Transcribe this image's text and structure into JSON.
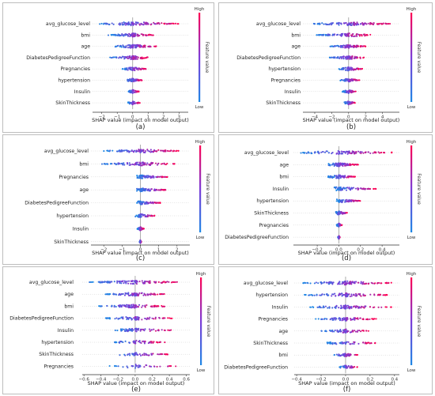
{
  "figure": {
    "colorbar": {
      "high": "High",
      "low": "Low",
      "title": "Feature value",
      "color_low": "#1e88e5",
      "color_high": "#ff0052"
    },
    "zero_line_color": "#999999",
    "xlabel": "SHAP value (impact on model output)"
  },
  "chart_data": [
    {
      "type": "scatter",
      "panel": "(a)",
      "xlabel": "SHAP value (impact on model output)",
      "xlim": [
        -2.6,
        3.6
      ],
      "xticks": [
        -2,
        -1,
        0,
        1,
        2,
        3
      ],
      "features": [
        "avg_glucose_level",
        "bmi",
        "age",
        "DiabetesPedigreeFunction",
        "Pregnancies",
        "hypertension",
        "Insulin",
        "SkinThickness"
      ],
      "ranges": [
        [
          -2.2,
          3.0
        ],
        [
          -1.6,
          1.4
        ],
        [
          -1.2,
          1.6
        ],
        [
          -1.6,
          1.0
        ],
        [
          -0.7,
          0.9
        ],
        [
          -0.4,
          0.6
        ],
        [
          -0.3,
          0.4
        ],
        [
          -0.3,
          0.5
        ]
      ]
    },
    {
      "type": "scatter",
      "panel": "(b)",
      "xlabel": "SHAP value (impact on model output)",
      "xlim": [
        -5.4,
        6.0
      ],
      "xticks": [
        -4,
        -2,
        0,
        2,
        4
      ],
      "features": [
        "avg_glucose_level",
        "bmi",
        "age",
        "DiabetesPedigreeFunction",
        "hypertension",
        "Pregnancies",
        "Insulin",
        "SkinThickness"
      ],
      "ranges": [
        [
          -4.3,
          5.2
        ],
        [
          -3.8,
          2.6
        ],
        [
          -2.2,
          2.0
        ],
        [
          -2.3,
          2.0
        ],
        [
          -1.2,
          1.6
        ],
        [
          -1.0,
          1.3
        ],
        [
          -0.8,
          0.9
        ],
        [
          -0.5,
          0.8
        ]
      ]
    },
    {
      "type": "scatter",
      "panel": "(c)",
      "xlabel": "SHAP value (impact on model output)",
      "xlim": [
        -2.7,
        2.7
      ],
      "xticks": [
        -2,
        -1,
        0,
        1,
        2
      ],
      "features": [
        "avg_glucose_level",
        "bmi",
        "Pregnancies",
        "age",
        "DiabetesPedigreeFunction",
        "hypertension",
        "Insulin",
        "SkinThickness"
      ],
      "ranges": [
        [
          -2.0,
          2.2
        ],
        [
          -2.1,
          1.9
        ],
        [
          -0.2,
          1.5
        ],
        [
          -0.2,
          1.4
        ],
        [
          -0.2,
          1.1
        ],
        [
          -0.3,
          0.8
        ],
        [
          -0.2,
          0.2
        ],
        [
          -0.05,
          0.05
        ]
      ]
    },
    {
      "type": "scatter",
      "panel": "(d)",
      "xlabel": "SHAP value (impact on model output)",
      "xlim": [
        -0.42,
        0.56
      ],
      "xticks": [
        -0.2,
        0.0,
        0.2,
        0.4
      ],
      "features": [
        "avg_glucose_level",
        "age",
        "bmi",
        "Insulin",
        "hypertension",
        "SkinThickness",
        "Pregnancies",
        "DiabetesPedigreeFunction"
      ],
      "ranges": [
        [
          -0.35,
          0.5
        ],
        [
          -0.1,
          0.18
        ],
        [
          -0.1,
          0.15
        ],
        [
          -0.05,
          0.35
        ],
        [
          -0.02,
          0.2
        ],
        [
          -0.03,
          0.08
        ],
        [
          -0.02,
          0.03
        ],
        [
          -0.01,
          0.01
        ]
      ]
    },
    {
      "type": "scatter",
      "panel": "(e)",
      "xlabel": "SHAP value (impact on model output)",
      "xlim": [
        -0.62,
        0.64
      ],
      "xticks": [
        -0.6,
        -0.4,
        -0.2,
        0.0,
        0.2,
        0.4,
        0.6
      ],
      "features": [
        "avg_glucose_level",
        "age",
        "bmi",
        "DiabetesPedigreeFunction",
        "Insulin",
        "hypertension",
        "SkinThickness",
        "Pregnancies"
      ],
      "ranges": [
        [
          -0.55,
          0.55
        ],
        [
          -0.35,
          0.35
        ],
        [
          -0.45,
          0.35
        ],
        [
          -0.35,
          0.45
        ],
        [
          -0.25,
          0.45
        ],
        [
          -0.3,
          0.35
        ],
        [
          -0.2,
          0.4
        ],
        [
          -0.3,
          0.5
        ]
      ]
    },
    {
      "type": "scatter",
      "panel": "(f)",
      "xlabel": "SHAP value (impact on model output)",
      "xlim": [
        -0.42,
        0.44
      ],
      "xticks": [
        -0.4,
        -0.2,
        0.0,
        0.2,
        0.4
      ],
      "features": [
        "avg_glucose_level",
        "hypertension",
        "Insulin",
        "Pregnancies",
        "age",
        "SkinThickness",
        "bmi",
        "DiabetesPedigreeFunction"
      ],
      "ranges": [
        [
          -0.35,
          0.38
        ],
        [
          -0.35,
          0.38
        ],
        [
          -0.3,
          0.38
        ],
        [
          -0.25,
          0.25
        ],
        [
          -0.2,
          0.2
        ],
        [
          -0.15,
          0.25
        ],
        [
          -0.1,
          0.1
        ],
        [
          -0.05,
          0.1
        ]
      ]
    }
  ]
}
